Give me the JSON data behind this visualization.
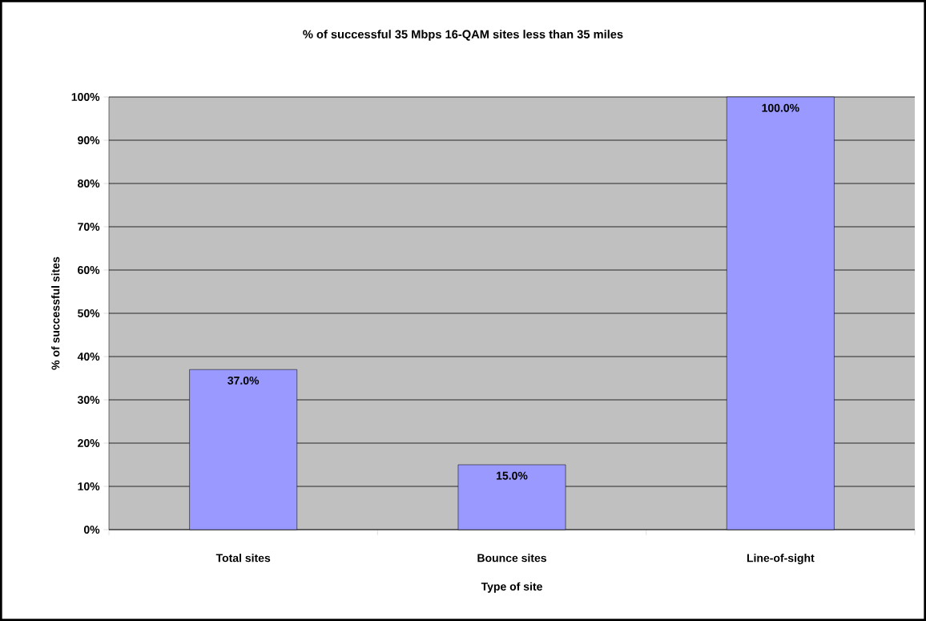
{
  "chart_data": {
    "type": "bar",
    "title": "% of successful 35 Mbps 16-QAM sites less than 35 miles",
    "xlabel": "Type of site",
    "ylabel": "% of successful sites",
    "categories": [
      "Total sites",
      "Bounce sites",
      "Line-of-sight"
    ],
    "values": [
      37,
      15,
      100
    ],
    "color": "#9999ff",
    "value_labels": [
      "37.0%",
      "15.0%",
      "100.0%"
    ],
    "ylim": [
      0,
      100
    ],
    "yticks": [
      {
        "value": 0,
        "label": "0%"
      },
      {
        "value": 10,
        "label": "10%"
      },
      {
        "value": 20,
        "label": "20%"
      },
      {
        "value": 30,
        "label": "30%"
      },
      {
        "value": 40,
        "label": "40%"
      },
      {
        "value": 50,
        "label": "50%"
      },
      {
        "value": 60,
        "label": "60%"
      },
      {
        "value": 70,
        "label": "70%"
      },
      {
        "value": 80,
        "label": "80%"
      },
      {
        "value": 90,
        "label": "90%"
      },
      {
        "value": 100,
        "label": "100%"
      }
    ],
    "grid": "y",
    "legend": false
  }
}
